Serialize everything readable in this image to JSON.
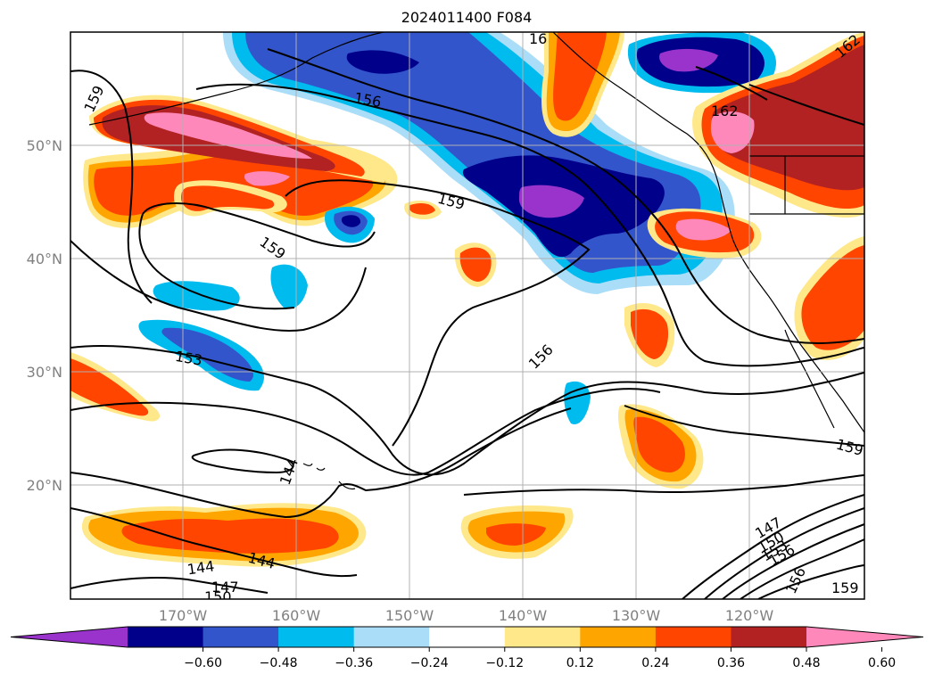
{
  "title": "2024011400 F084",
  "lat_labels": [
    "50°N",
    "40°N",
    "30°N",
    "20°N"
  ],
  "lon_labels": [
    "170°W",
    "160°W",
    "150°W",
    "140°W",
    "130°W",
    "120°W"
  ],
  "colorbar": {
    "ticks": [
      "−0.60",
      "−0.48",
      "−0.36",
      "−0.24",
      "−0.12",
      "0.12",
      "0.24",
      "0.36",
      "0.48",
      "0.60"
    ],
    "colors": [
      "#9933cc",
      "#00008b",
      "#3355cc",
      "#00bbee",
      "#aaddf7",
      "#ffffff",
      "#ffe88a",
      "#ffa500",
      "#ff4500",
      "#b22222",
      "#ff88bb"
    ]
  },
  "contour_labels": [
    "156",
    "159",
    "159",
    "159",
    "162",
    "156",
    "153",
    "144",
    "144",
    "144",
    "147",
    "150",
    "147",
    "150",
    "153",
    "156",
    "156",
    "159",
    "159",
    "162",
    "16"
  ]
}
